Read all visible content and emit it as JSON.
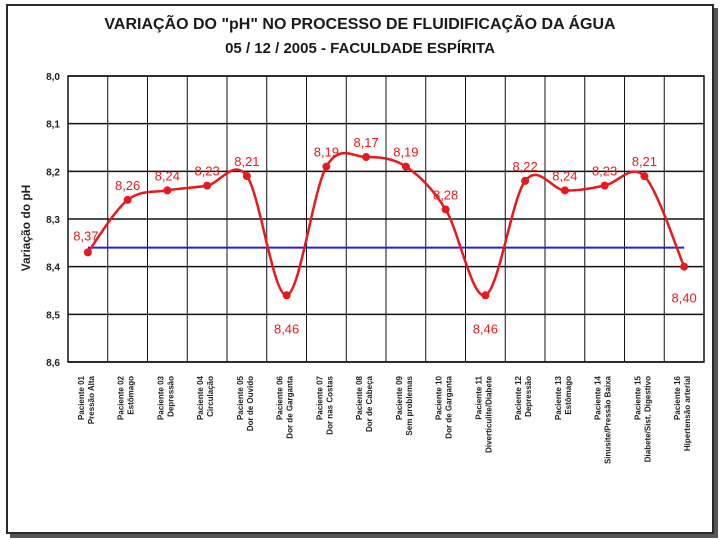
{
  "chart_data": {
    "type": "line",
    "title": "VARIAÇÃO DO \"pH\" NO PROCESSO DE FLUIDIFICAÇÃO DA ÁGUA",
    "subtitle": "05 / 12 / 2005  -  FACULDADE ESPÍRITA",
    "ylabel": "Variação do pH",
    "xlabel": "",
    "ylim": [
      8.0,
      8.6
    ],
    "y_inverted": true,
    "yticks": [
      "8,0",
      "8,1",
      "8,2",
      "8,3",
      "8,4",
      "8,5",
      "8,6"
    ],
    "grid": true,
    "categories": [
      "Paciente 01 Pressão Alta",
      "Paciente 02 Estômago",
      "Paciente 03 Depressão",
      "Paciente 04 Circulação",
      "Paciente 05 Dor de Ouvido",
      "Paciente 06 Dor de Garganta",
      "Paciente 07 Dor nas Costas",
      "Paciente 08 Dor de Cabeça",
      "Paciente 09 Sem problemas",
      "Paciente 10 Dor de Garganta",
      "Paciente 11 Diverticulite/Diabete",
      "Paciente 12 Depressão",
      "Paciente 13 Estômago",
      "Paciente 14 Sinusite/Pressão Baixa",
      "Paciente 15 Diabete/Sist. Digestivo",
      "Paciente 16 Hipertensão arterial"
    ],
    "series": [
      {
        "color": "#e8191c",
        "values": [
          8.37,
          8.26,
          8.24,
          8.23,
          8.21,
          8.46,
          8.19,
          8.17,
          8.19,
          8.28,
          8.46,
          8.22,
          8.24,
          8.23,
          8.21,
          8.4
        ],
        "labels": [
          "8,37",
          "8,26",
          "8,24",
          "8,23",
          "8,21",
          "8,46",
          "8,19",
          "8,17",
          "8,19",
          "8,28",
          "8,46",
          "8,22",
          "8,24",
          "8,23",
          "8,21",
          "8,40"
        ]
      }
    ],
    "reference_line": {
      "value": 8.36,
      "color": "#2323d6"
    }
  }
}
